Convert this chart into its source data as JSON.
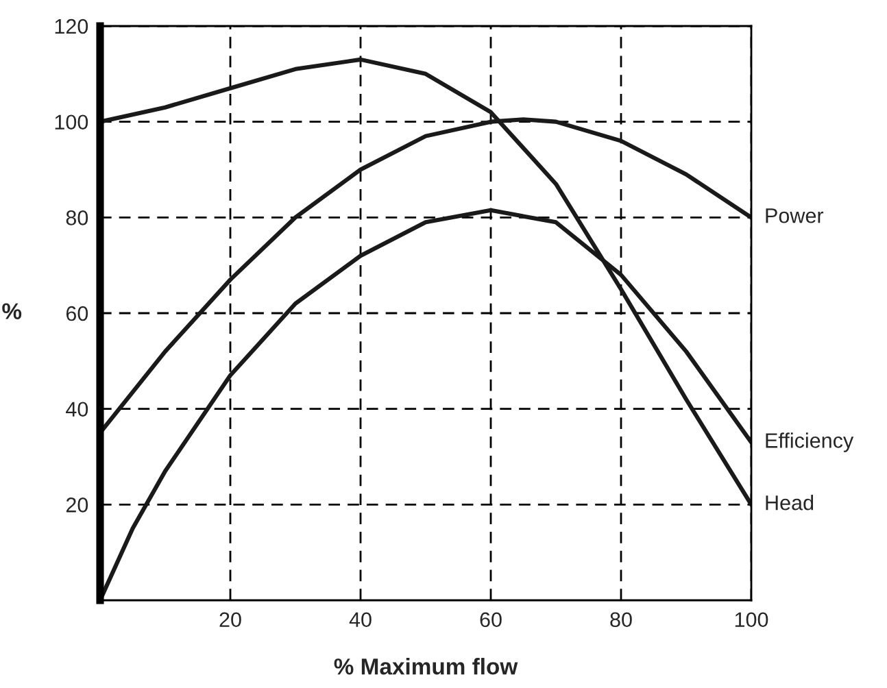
{
  "chart_data": {
    "type": "line",
    "xlabel": "% Maximum flow",
    "ylabel": "%",
    "xlim": [
      0,
      100
    ],
    "ylim": [
      0,
      120
    ],
    "xticks": [
      20,
      40,
      60,
      80,
      100
    ],
    "yticks": [
      20,
      40,
      60,
      80,
      100,
      120
    ],
    "grid": true,
    "legend": false,
    "marker": "none",
    "line_style": "solid",
    "series": [
      {
        "name": "Power",
        "color": "#1a1a1a",
        "x": [
          0,
          10,
          20,
          30,
          40,
          50,
          60,
          65,
          70,
          80,
          90,
          100
        ],
        "values": [
          35,
          52,
          67,
          80,
          90,
          97,
          100,
          100.5,
          100,
          96,
          89,
          80
        ]
      },
      {
        "name": "Efficiency",
        "color": "#1a1a1a",
        "x": [
          0,
          5,
          10,
          20,
          30,
          40,
          50,
          60,
          70,
          80,
          90,
          100
        ],
        "values": [
          0,
          15,
          27,
          47,
          62,
          72,
          79,
          81.5,
          79,
          68,
          52,
          33
        ]
      },
      {
        "name": "Head",
        "color": "#1a1a1a",
        "x": [
          0,
          10,
          20,
          30,
          40,
          50,
          60,
          70,
          80,
          90,
          100
        ],
        "values": [
          100,
          103,
          107,
          111,
          113,
          110,
          102,
          87,
          65,
          42,
          20
        ]
      }
    ]
  }
}
